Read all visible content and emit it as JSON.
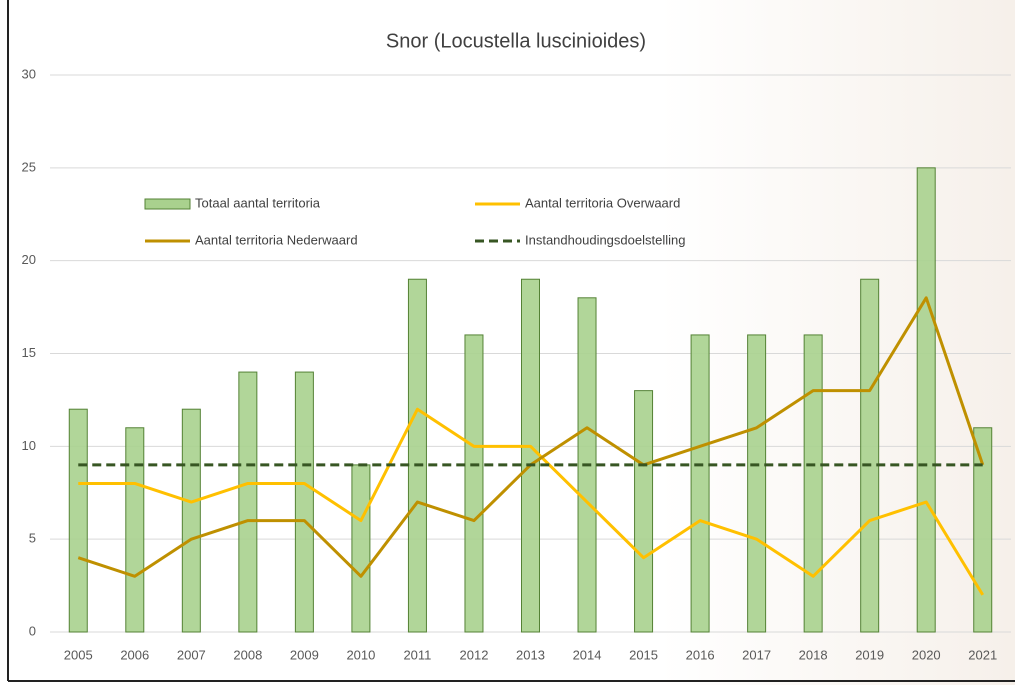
{
  "chart_data": {
    "type": "bar",
    "title": "Snor (Locustella luscinioides)",
    "categories": [
      "2005",
      "2006",
      "2007",
      "2008",
      "2009",
      "2010",
      "2011",
      "2012",
      "2013",
      "2014",
      "2015",
      "2016",
      "2017",
      "2018",
      "2019",
      "2020",
      "2021"
    ],
    "series": [
      {
        "name": "Totaal aantal territoria",
        "type": "bar",
        "color": "#a9d18e",
        "values": [
          12,
          11,
          12,
          14,
          14,
          9,
          19,
          16,
          19,
          18,
          13,
          16,
          16,
          16,
          19,
          25,
          11
        ]
      },
      {
        "name": "Aantal territoria Overwaard",
        "type": "line",
        "color": "#ffc000",
        "values": [
          8,
          8,
          7,
          8,
          8,
          6,
          12,
          10,
          10,
          7,
          4,
          6,
          5,
          3,
          6,
          7,
          2
        ]
      },
      {
        "name": "Aantal territoria Nederwaard",
        "type": "line",
        "color": "#bf9000",
        "values": [
          4,
          3,
          5,
          6,
          6,
          3,
          7,
          6,
          9,
          11,
          9,
          10,
          11,
          13,
          13,
          18,
          9
        ]
      },
      {
        "name": "Instandhoudingsdoelstelling",
        "type": "line",
        "dashed": true,
        "color": "#375623",
        "values": [
          9,
          9,
          9,
          9,
          9,
          9,
          9,
          9,
          9,
          9,
          9,
          9,
          9,
          9,
          9,
          9,
          9
        ]
      }
    ],
    "ylim": [
      0,
      30
    ],
    "yticks": [
      0,
      5,
      10,
      15,
      20,
      25,
      30
    ],
    "grid": true
  }
}
